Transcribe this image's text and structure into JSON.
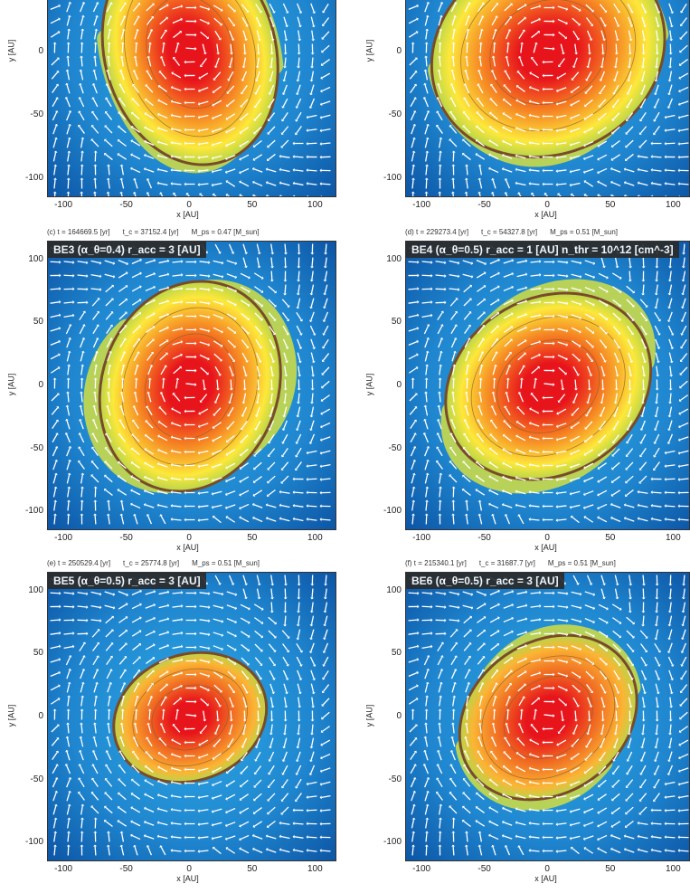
{
  "units": {
    "x": "x [AU]",
    "y": "y [AU]"
  },
  "ticks": {
    "x": [
      "-100",
      "-50",
      "0",
      "50",
      "100"
    ],
    "y": [
      "100",
      "50",
      "0",
      "-50",
      "-100"
    ]
  },
  "panels": [
    {
      "id": "a",
      "label": "",
      "header": {
        "t": "",
        "tc": "",
        "m": ""
      },
      "disk": {
        "rx": 68,
        "ry": 90,
        "angle": -15,
        "arms": "weak"
      },
      "colors": {
        "core": "#e8141c",
        "mid": "#f57f22",
        "outer": "#fde83a",
        "rim": "#7a4b2b"
      }
    },
    {
      "id": "b",
      "label": "",
      "header": {
        "t": "",
        "tc": "",
        "m": ""
      },
      "disk": {
        "rx": 95,
        "ry": 80,
        "angle": -25,
        "arms": "weak"
      },
      "colors": {
        "core": "#e8141c",
        "mid": "#f57f22",
        "outer": "#fde83a",
        "rim": "#7a4b2b"
      }
    },
    {
      "id": "c",
      "label": "BE3 (α_θ=0.4)  r_acc = 3 [AU]",
      "header": {
        "t": "(c) t = 164669.5 [yr]",
        "tc": "t_c = 37152.4 [yr]",
        "m": "M_ps = 0.47 [M_sun]"
      },
      "disk": {
        "rx": 70,
        "ry": 85,
        "angle": 20,
        "arms": "strong"
      },
      "colors": {
        "core": "#e8141c",
        "mid": "#f57f22",
        "outer": "#fde83a",
        "rim": "#7a4b2b"
      }
    },
    {
      "id": "d",
      "label": "BE4 (α_θ=0.5)  r_acc = 1 [AU]  n_thr = 10^12 [cm^-3]",
      "header": {
        "t": "(d) t = 229273.4 [yr]",
        "tc": "t_c = 54327.8 [yr]",
        "m": "M_ps = 0.51 [M_sun]"
      },
      "disk": {
        "rx": 85,
        "ry": 70,
        "angle": -30,
        "arms": "strong"
      },
      "colors": {
        "core": "#e8141c",
        "mid": "#f57f22",
        "outer": "#fde83a",
        "rim": "#7a4b2b"
      }
    },
    {
      "id": "e",
      "label": "BE5 (α_θ=0.5)  r_acc = 3 [AU]",
      "header": {
        "t": "(e) t = 250529.4 [yr]",
        "tc": "t_c = 25774.8 [yr]",
        "m": "M_ps = 0.51 [M_sun]"
      },
      "disk": {
        "rx": 62,
        "ry": 50,
        "angle": -20,
        "arms": "none"
      },
      "colors": {
        "core": "#e8141c",
        "mid": "#f06a22",
        "outer": "#fbb534",
        "rim": "#7a4b2b"
      }
    },
    {
      "id": "f",
      "label": "BE6 (α_θ=0.5)  r_acc = 3 [AU]",
      "header": {
        "t": "(f) t = 215340.1 [yr]",
        "tc": "t_c = 31687.7 [yr]",
        "m": "M_ps = 0.51 [M_sun]"
      },
      "disk": {
        "rx": 75,
        "ry": 60,
        "angle": -35,
        "arms": "medium"
      },
      "colors": {
        "core": "#e8141c",
        "mid": "#f06a22",
        "outer": "#fbb534",
        "rim": "#7a4b2b"
      }
    }
  ],
  "background": {
    "inner": "#2ea9e5",
    "outer": "#0c55a5",
    "arrow": "#ffffff"
  }
}
